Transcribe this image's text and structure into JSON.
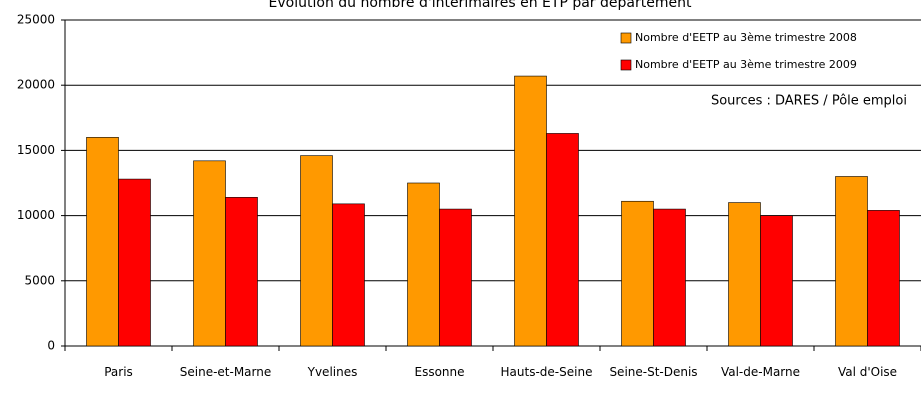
{
  "chart_data": {
    "type": "bar",
    "title": "Evolution du nombre d'intérimaires en ETP par département",
    "annotation": "Sources : DARES / Pôle emploi",
    "categories": [
      "Paris",
      "Seine-et-Marne",
      "Yvelines",
      "Essonne",
      "Hauts-de-Seine",
      "Seine-St-Denis",
      "Val-de-Marne",
      "Val d'Oise"
    ],
    "series": [
      {
        "name": "Nombre d'EETP au 3ème trimestre 2008",
        "color": "#ff9900",
        "values": [
          16000,
          14200,
          14600,
          12500,
          20700,
          11100,
          11000,
          13000
        ]
      },
      {
        "name": "Nombre d'EETP au 3ème trimestre 2009",
        "color": "#ff0000",
        "values": [
          12800,
          11400,
          10900,
          10500,
          16300,
          10500,
          10000,
          10400
        ]
      }
    ],
    "ylim": [
      0,
      25000
    ],
    "yticks": [
      0,
      5000,
      10000,
      15000,
      20000,
      25000
    ],
    "grid": true,
    "legend": "top-right"
  }
}
